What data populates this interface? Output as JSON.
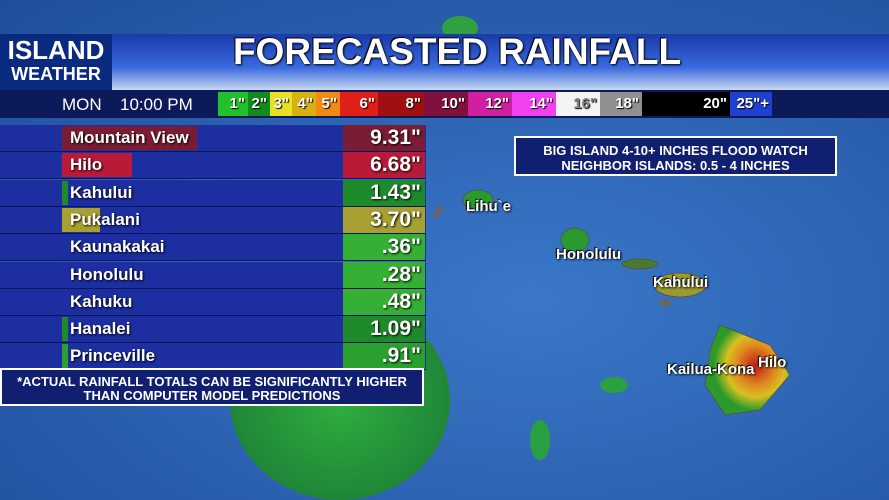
{
  "header": {
    "logo_line1": "ISLAND",
    "logo_line2": "WEATHER",
    "title": "FORECASTED RAINFALL"
  },
  "timebar": {
    "day": "MON",
    "time": "10:00 PM",
    "legend": [
      {
        "label": "1\"",
        "color": "#22c02a"
      },
      {
        "label": "2\"",
        "color": "#128a1c"
      },
      {
        "label": "3\"",
        "color": "#e8e020"
      },
      {
        "label": "4\"",
        "color": "#d8b010"
      },
      {
        "label": "5\"",
        "color": "#f08a10"
      },
      {
        "label": "6\"",
        "color": "#e02018"
      },
      {
        "label": "8\"",
        "color": "#a01010"
      },
      {
        "label": "10\"",
        "color": "#801040"
      },
      {
        "label": "12\"",
        "color": "#d020a0"
      },
      {
        "label": "14\"",
        "color": "#f040f0"
      },
      {
        "label": "16\"",
        "color": "#f4f4f4"
      },
      {
        "label": "18\"",
        "color": "#909090"
      },
      {
        "label": "20\"",
        "color": "#000000"
      },
      {
        "label": "25\"+",
        "color": "#2040d0"
      }
    ]
  },
  "table": {
    "rows": [
      {
        "name": "Mountain View",
        "value": "9.31\"",
        "color": "#7a1c34"
      },
      {
        "name": "Hilo",
        "value": "6.68\"",
        "color": "#b81a38"
      },
      {
        "name": "Kahului",
        "value": "1.43\"",
        "color": "#1f8a2c"
      },
      {
        "name": "Pukalani",
        "value": "3.70\"",
        "color": "#a8a030"
      },
      {
        "name": "Kaunakakai",
        "value": ".36\"",
        "color": "#36b034"
      },
      {
        "name": "Honolulu",
        "value": ".28\"",
        "color": "#36b034"
      },
      {
        "name": "Kahuku",
        "value": ".48\"",
        "color": "#36b034"
      },
      {
        "name": "Hanalei",
        "value": "1.09\"",
        "color": "#1f8a2c"
      },
      {
        "name": "Princeville",
        "value": ".91\"",
        "color": "#2aa02e"
      }
    ]
  },
  "notice": {
    "line1": "BIG ISLAND 4-10+ INCHES FLOOD WATCH",
    "line2": "NEIGHBOR ISLANDS:  0.5 - 4 INCHES"
  },
  "footnote": {
    "line1": "*ACTUAL RAINFALL TOTALS CAN BE SIGNIFICANTLY HIGHER",
    "line2": "THAN COMPUTER MODEL PREDICTIONS"
  },
  "map_labels": [
    "Lihu`e",
    "Honolulu",
    "Kahului",
    "Kailua-Kona",
    "Hilo"
  ]
}
